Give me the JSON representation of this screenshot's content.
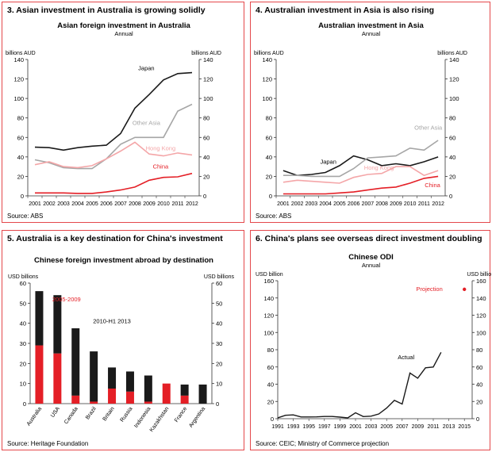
{
  "colors": {
    "border": "#e4484b",
    "red": "#e41f26",
    "black": "#1a1a1a",
    "gray": "#a6a6a6",
    "pink": "#f4a6a8"
  },
  "panels": [
    {
      "heading": "3. Asian investment in Australia is growing solidly",
      "source": "Source: ABS",
      "chart_data": {
        "type": "line",
        "title": "Asian foreign investment in Australia",
        "subtitle": "Annual",
        "y_left_label": "billions AUD",
        "y_right_label": "billions AUD",
        "ylim": [
          0,
          140
        ],
        "yticks": [
          0,
          20,
          40,
          60,
          80,
          100,
          120,
          140
        ],
        "x": [
          "2001",
          "2002",
          "2003",
          "2004",
          "2005",
          "2006",
          "2007",
          "2008",
          "2009",
          "2010",
          "2011",
          "2012"
        ],
        "series": [
          {
            "name": "Japan",
            "color": "#1a1a1a",
            "values": [
              50,
              49.5,
              47,
              49.5,
              51,
              52,
              64,
              90,
              104,
              119,
              125.5,
              126.5
            ]
          },
          {
            "name": "Other Asia",
            "color": "#a6a6a6",
            "values": [
              37,
              34,
              29,
              28,
              28,
              38,
              53,
              60,
              60,
              60,
              87,
              94
            ]
          },
          {
            "name": "Hong Kong",
            "color": "#f4a6a8",
            "values": [
              32,
              35,
              30,
              29,
              31,
              38,
              46,
              55,
              43,
              41,
              44,
              42
            ]
          },
          {
            "name": "China",
            "color": "#e41f26",
            "values": [
              3,
              3,
              3,
              2.5,
              2.5,
              4,
              6,
              9,
              16,
              19,
              19.5,
              23
            ]
          }
        ],
        "labels": [
          "Japan",
          "Other Asia",
          "Hong Kong",
          "China"
        ]
      }
    },
    {
      "heading": "4. Australian investment in Asia is also rising",
      "source": "Source: ABS",
      "chart_data": {
        "type": "line",
        "title": "Australian investment in Asia",
        "subtitle": "Annual",
        "y_left_label": "billions AUD",
        "y_right_label": "billions AUD",
        "ylim": [
          0,
          140
        ],
        "yticks": [
          0,
          20,
          40,
          60,
          80,
          100,
          120,
          140
        ],
        "x": [
          "2001",
          "2002",
          "2003",
          "2004",
          "2005",
          "2006",
          "2007",
          "2008",
          "2009",
          "2010",
          "2011",
          "2012"
        ],
        "series": [
          {
            "name": "Japan",
            "color": "#1a1a1a",
            "values": [
              26,
              21,
              22,
              24,
              31,
              41,
              37,
              31,
              33,
              31,
              35,
              40
            ]
          },
          {
            "name": "Other Asia",
            "color": "#a6a6a6",
            "values": [
              21,
              21,
              20,
              20,
              20,
              28,
              39,
              40,
              41,
              49,
              47,
              57
            ]
          },
          {
            "name": "Hong Kong",
            "color": "#f4a6a8",
            "values": [
              14,
              16,
              15,
              14,
              13,
              19,
              22,
              23,
              30,
              30,
              21,
              26
            ]
          },
          {
            "name": "China",
            "color": "#e41f26",
            "values": [
              2,
              2,
              2,
              2,
              3,
              4,
              6,
              8,
              9,
              13,
              18,
              20
            ]
          }
        ],
        "labels": [
          "Japan",
          "Other Asia",
          "Hong Kong",
          "China"
        ]
      }
    },
    {
      "heading": "5. Australia is a key destination for China's investment",
      "source": "Source: Heritage Foundation",
      "chart_data": {
        "type": "bar",
        "title": "Chinese foreign investment abroad by destination",
        "y_left_label": "USD billions",
        "y_right_label": "USD billions",
        "ylim": [
          0,
          60
        ],
        "yticks": [
          0,
          10,
          20,
          30,
          40,
          50,
          60
        ],
        "categories": [
          "Australia",
          "USA",
          "Canada",
          "Brazil",
          "Britain",
          "Russia",
          "Indonesia",
          "Kazakhstan",
          "France",
          "Argentina"
        ],
        "series": [
          {
            "name": "2005-2009",
            "color": "#e41f26",
            "values": [
              29,
              25,
              4,
              1,
              7.5,
              6,
              1,
              10,
              4,
              0
            ]
          },
          {
            "name": "2010-H1 2013",
            "color": "#1a1a1a",
            "values": [
              27,
              29,
              33.5,
              25,
              10.5,
              10,
              13,
              0,
              5.5,
              9.5
            ]
          }
        ],
        "labels": [
          "2005-2009",
          "2010-H1 2013"
        ]
      }
    },
    {
      "heading": "6. China's plans see overseas direct investment doubling",
      "source": "Source: CEIC; Ministry of Commerce projection",
      "chart_data": {
        "type": "line",
        "title": "Chinese ODI",
        "subtitle": "Annual",
        "y_left_label": "USD billion",
        "y_right_label": "USD billion",
        "ylim": [
          0,
          160
        ],
        "yticks": [
          0,
          20,
          40,
          60,
          80,
          100,
          120,
          140,
          160
        ],
        "xlim": [
          1991,
          2016
        ],
        "xticks": [
          1991,
          1993,
          1995,
          1997,
          1999,
          2001,
          2003,
          2005,
          2007,
          2009,
          2011,
          2013,
          2015
        ],
        "series": [
          {
            "name": "Actual",
            "color": "#1a1a1a",
            "points": [
              [
                1991,
                1
              ],
              [
                1992,
                4
              ],
              [
                1993,
                4.4
              ],
              [
                1994,
                2
              ],
              [
                1995,
                2
              ],
              [
                1996,
                2.1
              ],
              [
                1997,
                2.6
              ],
              [
                1998,
                2.6
              ],
              [
                1999,
                1.8
              ],
              [
                2000,
                0.9
              ],
              [
                2001,
                6.9
              ],
              [
                2002,
                2.5
              ],
              [
                2003,
                2.9
              ],
              [
                2004,
                5.5
              ],
              [
                2005,
                12.3
              ],
              [
                2006,
                21.2
              ],
              [
                2007,
                17
              ],
              [
                2008,
                53
              ],
              [
                2009,
                47
              ],
              [
                2010,
                59
              ],
              [
                2011,
                60
              ],
              [
                2012,
                77
              ]
            ]
          },
          {
            "name": "Projection",
            "color": "#e41f26",
            "points": [
              [
                2015,
                150
              ]
            ]
          }
        ],
        "labels": [
          "Actual",
          "Projection"
        ]
      }
    }
  ]
}
